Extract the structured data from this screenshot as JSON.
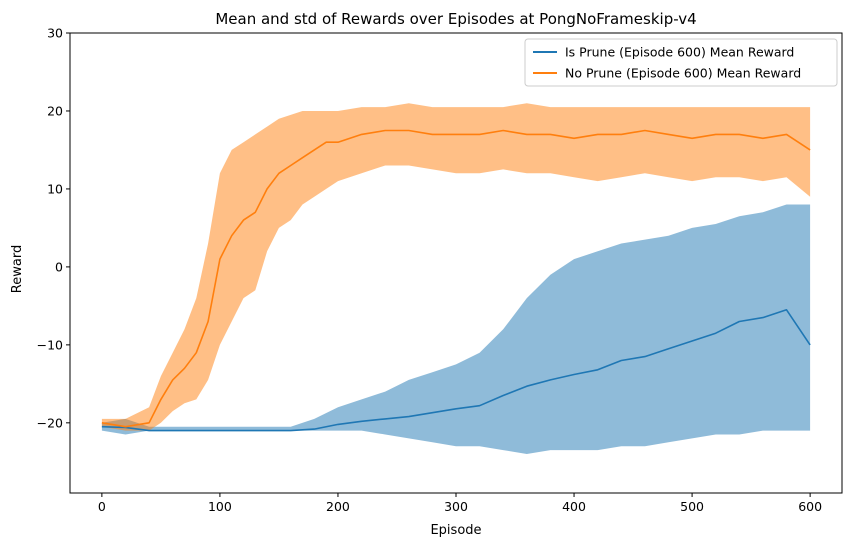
{
  "chart_data": {
    "type": "line",
    "title": "Mean and std of Rewards over Episodes at PongNoFrameskip-v4",
    "xlabel": "Episode",
    "ylabel": "Reward",
    "xlim": [
      -27,
      627
    ],
    "ylim": [
      -29,
      30
    ],
    "xticks": [
      0,
      100,
      200,
      300,
      400,
      500,
      600
    ],
    "yticks": [
      -20,
      -10,
      0,
      10,
      20,
      30
    ],
    "grid": false,
    "legend_position": "top-right",
    "fill_alpha": 0.5,
    "series": [
      {
        "name": "Is Prune (Episode 600) Mean Reward",
        "color": "#1f77b4",
        "x": [
          0,
          20,
          40,
          60,
          80,
          100,
          120,
          140,
          160,
          180,
          200,
          220,
          240,
          260,
          280,
          300,
          320,
          340,
          360,
          380,
          400,
          420,
          440,
          460,
          480,
          500,
          520,
          540,
          560,
          580,
          600
        ],
        "mean": [
          -20.5,
          -20.6,
          -21,
          -21,
          -21,
          -21,
          -21,
          -21,
          -21,
          -20.8,
          -20.2,
          -19.8,
          -19.5,
          -19.2,
          -18.7,
          -18.2,
          -17.8,
          -16.5,
          -15.3,
          -14.5,
          -13.8,
          -13.2,
          -12.0,
          -11.5,
          -10.5,
          -9.5,
          -8.5,
          -7.0,
          -6.5,
          -5.5,
          -10
        ],
        "upper": [
          -20,
          -19.5,
          -20.5,
          -20.5,
          -20.5,
          -20.5,
          -20.5,
          -20.5,
          -20.5,
          -19.5,
          -18,
          -17,
          -16,
          -14.5,
          -13.5,
          -12.5,
          -11,
          -8,
          -4,
          -1,
          1,
          2,
          3,
          3.5,
          4,
          5,
          5.5,
          6.5,
          7,
          8,
          8
        ],
        "lower": [
          -21,
          -21.5,
          -21,
          -21,
          -21,
          -21,
          -21,
          -21,
          -21,
          -21,
          -21,
          -21,
          -21.5,
          -22,
          -22.5,
          -23,
          -23,
          -23.5,
          -24,
          -23.5,
          -23.5,
          -23.5,
          -23,
          -23,
          -22.5,
          -22,
          -21.5,
          -21.5,
          -21,
          -21,
          -21
        ]
      },
      {
        "name": "No Prune (Episode 600) Mean Reward",
        "color": "#ff7f0e",
        "x": [
          0,
          20,
          40,
          50,
          60,
          70,
          80,
          90,
          100,
          110,
          120,
          130,
          140,
          150,
          160,
          170,
          180,
          190,
          200,
          220,
          240,
          260,
          280,
          300,
          320,
          340,
          360,
          380,
          400,
          420,
          440,
          460,
          480,
          500,
          520,
          540,
          560,
          580,
          600
        ],
        "mean": [
          -20,
          -20.5,
          -20,
          -17,
          -14.5,
          -13,
          -11,
          -7,
          1,
          4,
          6,
          7,
          10,
          12,
          13,
          14,
          15,
          16,
          16,
          17,
          17.5,
          17.5,
          17,
          17,
          17,
          17.5,
          17,
          17,
          16.5,
          17,
          17,
          17.5,
          17,
          16.5,
          17,
          17,
          16.5,
          17,
          15
        ],
        "upper": [
          -19.5,
          -19.5,
          -18,
          -14,
          -11,
          -8,
          -4,
          3,
          12,
          15,
          16,
          17,
          18,
          19,
          19.5,
          20,
          20,
          20,
          20,
          20.5,
          20.5,
          21,
          20.5,
          20.5,
          20.5,
          20.5,
          21,
          20.5,
          20.5,
          20.5,
          20.5,
          20.5,
          20.5,
          20.5,
          20.5,
          20.5,
          20.5,
          20.5,
          20.5
        ],
        "lower": [
          -20.5,
          -21,
          -21,
          -20,
          -18.5,
          -17.5,
          -17,
          -14.5,
          -10,
          -7,
          -4,
          -3,
          2,
          5,
          6,
          8,
          9,
          10,
          11,
          12,
          13,
          13,
          12.5,
          12,
          12,
          12.5,
          12,
          12,
          11.5,
          11,
          11.5,
          12,
          11.5,
          11,
          11.5,
          11.5,
          11,
          11.5,
          9
        ]
      }
    ]
  }
}
